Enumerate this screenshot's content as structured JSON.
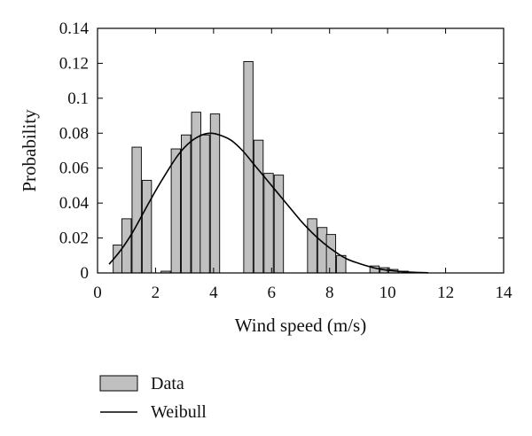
{
  "chart_data": {
    "type": "bar",
    "xlabel": "Wind speed (m/s)",
    "ylabel": "Probability",
    "xlim": [
      0,
      14
    ],
    "ylim": [
      0,
      0.14
    ],
    "x_ticks": [
      "0",
      "2",
      "4",
      "6",
      "8",
      "10",
      "12",
      "14"
    ],
    "y_ticks": [
      "0",
      "0.02",
      "0.04",
      "0.06",
      "0.08",
      "0.1",
      "0.12",
      "0.14"
    ],
    "bar_width": 0.32,
    "grid": false,
    "legend_position": "bottom-left",
    "series": [
      {
        "name": "Data",
        "kind": "histogram",
        "color": "#c0c0c0",
        "x": [
          0.7,
          1.0,
          1.35,
          1.7,
          2.35,
          2.7,
          3.05,
          3.4,
          3.7,
          4.05,
          5.2,
          5.55,
          5.9,
          6.25,
          7.4,
          7.75,
          8.05,
          8.4,
          9.55,
          9.9,
          10.2,
          10.55
        ],
        "values": [
          0.016,
          0.031,
          0.072,
          0.053,
          0.001,
          0.071,
          0.079,
          0.092,
          0.079,
          0.091,
          0.121,
          0.076,
          0.057,
          0.056,
          0.031,
          0.026,
          0.022,
          0.01,
          0.004,
          0.003,
          0.002,
          0.001
        ]
      },
      {
        "name": "Weibull",
        "kind": "line",
        "color": "#000000",
        "x": [
          0.4,
          0.8,
          1.2,
          1.6,
          2.0,
          2.4,
          2.8,
          3.2,
          3.6,
          3.9,
          4.2,
          4.6,
          5.0,
          5.4,
          5.8,
          6.2,
          6.6,
          7.0,
          7.4,
          7.8,
          8.2,
          8.6,
          9.0,
          9.4,
          9.8,
          10.2,
          10.6,
          11.0,
          11.4
        ],
        "values": [
          0.005,
          0.013,
          0.023,
          0.035,
          0.047,
          0.058,
          0.068,
          0.075,
          0.079,
          0.08,
          0.079,
          0.076,
          0.07,
          0.062,
          0.054,
          0.046,
          0.038,
          0.03,
          0.023,
          0.017,
          0.012,
          0.008,
          0.0055,
          0.0035,
          0.002,
          0.0012,
          0.0006,
          0.0003,
          0.0001
        ]
      }
    ]
  }
}
